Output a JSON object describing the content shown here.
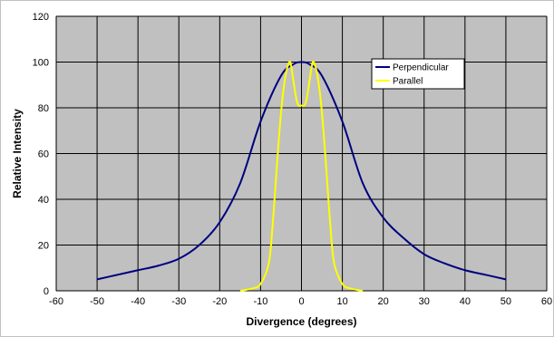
{
  "chart_data": {
    "type": "line",
    "title": "",
    "xlabel": "Divergence (degrees)",
    "ylabel": "Relative Intensity",
    "xlim": [
      -60,
      60
    ],
    "ylim": [
      0,
      120
    ],
    "xticks": [
      -60,
      -50,
      -40,
      -30,
      -20,
      -10,
      0,
      10,
      20,
      30,
      40,
      50,
      60
    ],
    "yticks": [
      0,
      20,
      40,
      60,
      80,
      100,
      120
    ],
    "grid": true,
    "plot_background": "#c0c0c0",
    "legend_position": "top-right",
    "series": [
      {
        "name": "Perpendicular",
        "color": "#000080",
        "x": [
          -50,
          -45,
          -40,
          -35,
          -30,
          -25,
          -20,
          -15,
          -10,
          -5,
          -2,
          0,
          2,
          5,
          10,
          15,
          20,
          25,
          30,
          35,
          40,
          45,
          50
        ],
        "y": [
          5,
          7,
          9,
          11,
          14,
          20,
          30,
          47,
          74,
          94,
          99,
          100,
          99,
          94,
          74,
          47,
          32,
          23,
          16,
          12,
          9,
          7,
          5
        ]
      },
      {
        "name": "Parallel",
        "color": "#ffff00",
        "x": [
          -15,
          -12,
          -10,
          -8,
          -7,
          -6,
          -5,
          -4,
          -3,
          -2.5,
          -2,
          -1,
          0,
          1,
          2,
          2.5,
          3,
          4,
          5,
          6,
          7,
          8,
          10,
          12,
          15
        ],
        "y": [
          0,
          1,
          3,
          12,
          30,
          55,
          78,
          93,
          100,
          98,
          92,
          82,
          81,
          82,
          92,
          98,
          100,
          93,
          78,
          55,
          30,
          12,
          3,
          1,
          0
        ]
      }
    ]
  }
}
